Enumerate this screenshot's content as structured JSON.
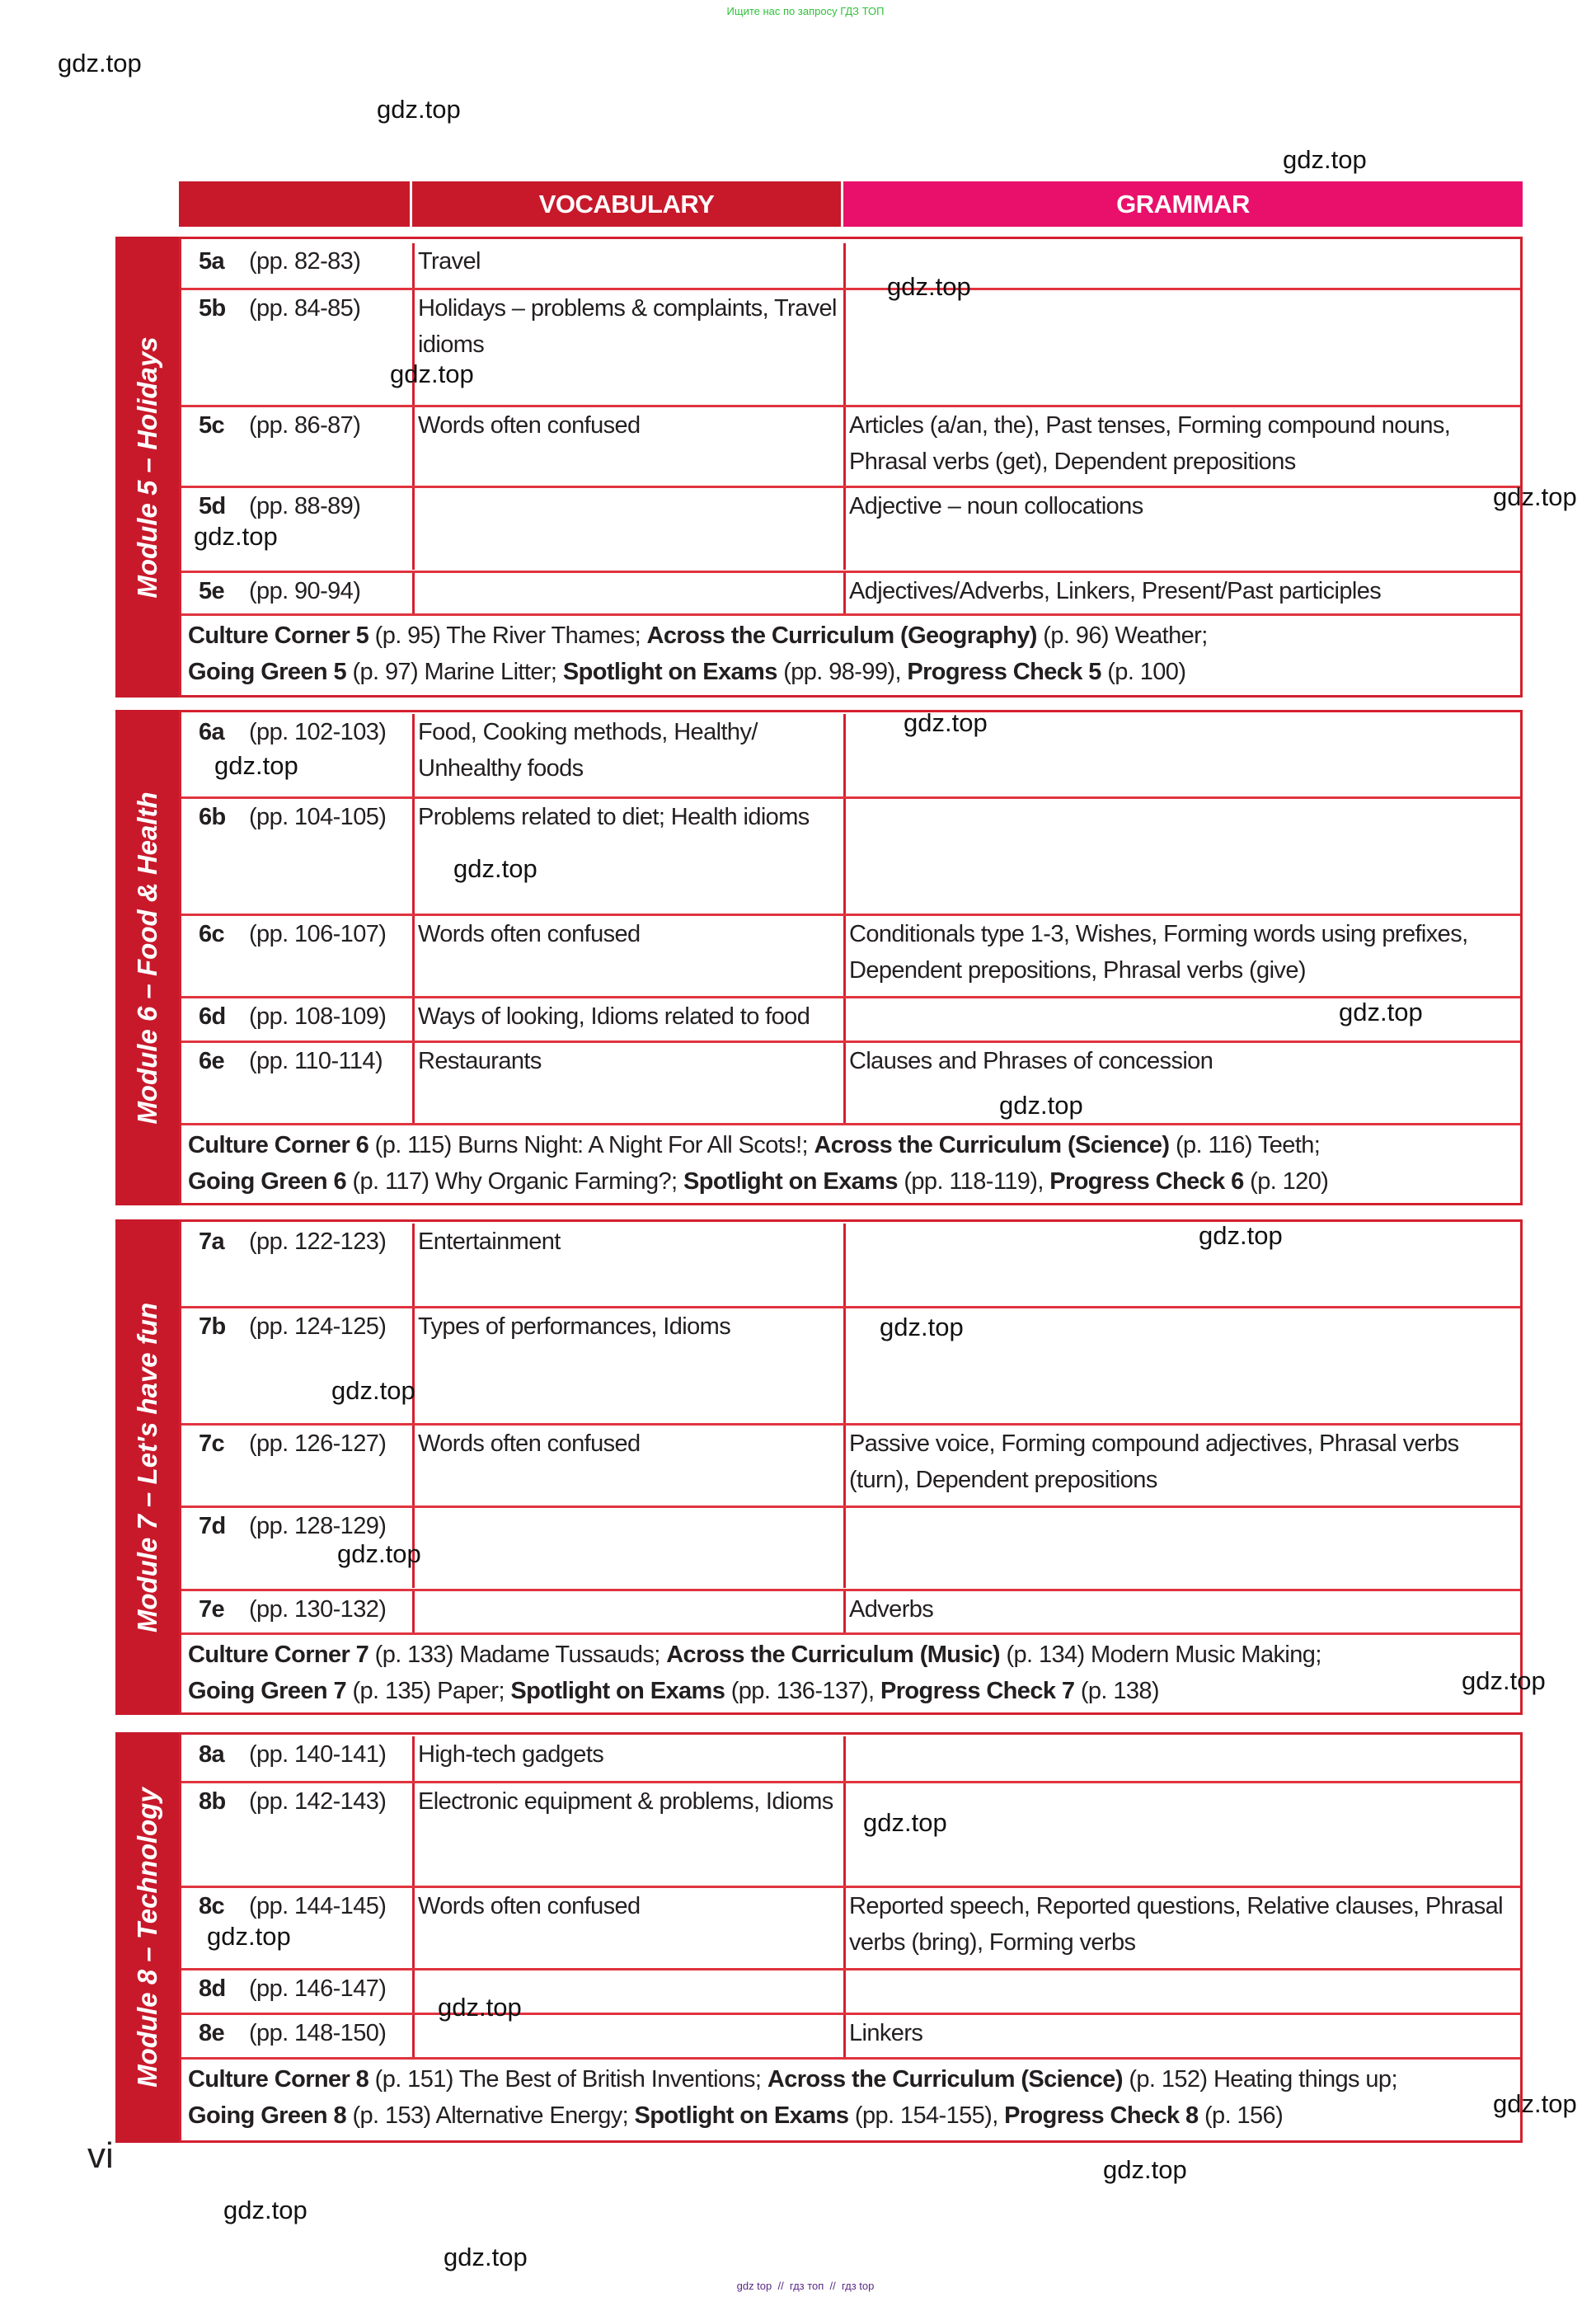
{
  "top_banner": "Ищите нас по запросу ГДЗ ТОП",
  "bottom_banner": "gdz top  //  гдз топ  //  гдз top",
  "page_number": "vi",
  "watermark": "gdz.top",
  "header": {
    "vocabulary": "VOCABULARY",
    "grammar": "GRAMMAR"
  },
  "colors": {
    "red": "#c8192b",
    "magenta": "#e8106a",
    "border": "#d4202f"
  },
  "modules": [
    {
      "label": "Module 5 – Holidays",
      "rows": [
        {
          "code": "5a",
          "pages": "(pp. 82-83)",
          "vocabulary": "Travel",
          "grammar": ""
        },
        {
          "code": "5b",
          "pages": "(pp. 84-85)",
          "vocabulary": "Holidays – problems & complaints, Travel idioms",
          "grammar": ""
        },
        {
          "code": "5c",
          "pages": "(pp. 86-87)",
          "vocabulary": "Words often confused",
          "grammar": "Articles (a/an, the), Past tenses, Forming compound nouns, Phrasal verbs (get), Dependent prepositions"
        },
        {
          "code": "5d",
          "pages": "(pp. 88-89)",
          "vocabulary": "",
          "grammar": "Adjective – noun collocations"
        },
        {
          "code": "5e",
          "pages": "(pp. 90-94)",
          "vocabulary": "",
          "grammar": "Adjectives/Adverbs, Linkers, Present/Past participles"
        }
      ],
      "culture": [
        {
          "bold": true,
          "text": "Culture Corner 5"
        },
        {
          "bold": false,
          "text": " (p. 95) The River Thames; "
        },
        {
          "bold": true,
          "text": "Across the Curriculum (Geography)"
        },
        {
          "bold": false,
          "text": " (p. 96) Weather;"
        },
        {
          "bold": true,
          "text": "Going Green 5",
          "br": true
        },
        {
          "bold": false,
          "text": " (p. 97) Marine Litter; "
        },
        {
          "bold": true,
          "text": "Spotlight on Exams"
        },
        {
          "bold": false,
          "text": " (pp. 98-99), "
        },
        {
          "bold": true,
          "text": "Progress Check 5"
        },
        {
          "bold": false,
          "text": " (p. 100)"
        }
      ]
    },
    {
      "label": "Module 6 – Food & Health",
      "rows": [
        {
          "code": "6a",
          "pages": "(pp. 102-103)",
          "vocabulary": "Food, Cooking methods, Healthy/ Unhealthy foods",
          "grammar": ""
        },
        {
          "code": "6b",
          "pages": "(pp. 104-105)",
          "vocabulary": "Problems related to diet; Health idioms",
          "grammar": ""
        },
        {
          "code": "6c",
          "pages": "(pp. 106-107)",
          "vocabulary": "Words often confused",
          "grammar": "Conditionals type 1-3, Wishes, Forming words using prefixes, Dependent prepositions, Phrasal verbs (give)"
        },
        {
          "code": "6d",
          "pages": "(pp. 108-109)",
          "vocabulary": "Ways of looking, Idioms related to food",
          "grammar": ""
        },
        {
          "code": "6e",
          "pages": "(pp. 110-114)",
          "vocabulary": "Restaurants",
          "grammar": "Clauses and Phrases of concession"
        }
      ],
      "culture": [
        {
          "bold": true,
          "text": "Culture Corner 6"
        },
        {
          "bold": false,
          "text": " (p. 115) Burns Night: A Night For All Scots!; "
        },
        {
          "bold": true,
          "text": "Across the Curriculum (Science)"
        },
        {
          "bold": false,
          "text": " (p. 116) Teeth;"
        },
        {
          "bold": true,
          "text": "Going Green 6",
          "br": true
        },
        {
          "bold": false,
          "text": " (p. 117) Why Organic Farming?; "
        },
        {
          "bold": true,
          "text": "Spotlight on Exams"
        },
        {
          "bold": false,
          "text": " (pp. 118-119), "
        },
        {
          "bold": true,
          "text": "Progress Check 6"
        },
        {
          "bold": false,
          "text": " (p. 120)"
        }
      ]
    },
    {
      "label": "Module 7 – Let's have fun",
      "rows": [
        {
          "code": "7a",
          "pages": "(pp. 122-123)",
          "vocabulary": "Entertainment",
          "grammar": ""
        },
        {
          "code": "7b",
          "pages": "(pp. 124-125)",
          "vocabulary": "Types of performances, Idioms",
          "grammar": ""
        },
        {
          "code": "7c",
          "pages": "(pp. 126-127)",
          "vocabulary": "Words often confused",
          "grammar": "Passive voice, Forming compound adjectives, Phrasal verbs (turn), Dependent prepositions"
        },
        {
          "code": "7d",
          "pages": "(pp. 128-129)",
          "vocabulary": "",
          "grammar": ""
        },
        {
          "code": "7e",
          "pages": "(pp. 130-132)",
          "vocabulary": "",
          "grammar": "Adverbs"
        }
      ],
      "culture": [
        {
          "bold": true,
          "text": "Culture Corner 7"
        },
        {
          "bold": false,
          "text": " (p. 133) Madame Tussauds; "
        },
        {
          "bold": true,
          "text": "Across the Curriculum (Music)"
        },
        {
          "bold": false,
          "text": " (p. 134) Modern Music Making;"
        },
        {
          "bold": true,
          "text": "Going Green 7",
          "br": true
        },
        {
          "bold": false,
          "text": " (p. 135) Paper; "
        },
        {
          "bold": true,
          "text": "Spotlight on Exams"
        },
        {
          "bold": false,
          "text": " (pp. 136-137), "
        },
        {
          "bold": true,
          "text": "Progress Check 7"
        },
        {
          "bold": false,
          "text": " (p. 138)"
        }
      ]
    },
    {
      "label": "Module 8 – Technology",
      "rows": [
        {
          "code": "8a",
          "pages": "(pp. 140-141)",
          "vocabulary": "High-tech gadgets",
          "grammar": ""
        },
        {
          "code": "8b",
          "pages": "(pp. 142-143)",
          "vocabulary": "Electronic equipment & problems, Idioms",
          "grammar": ""
        },
        {
          "code": "8c",
          "pages": "(pp. 144-145)",
          "vocabulary": "Words often confused",
          "grammar": "Reported speech, Reported questions, Relative clauses, Phrasal verbs (bring), Forming verbs"
        },
        {
          "code": "8d",
          "pages": "(pp. 146-147)",
          "vocabulary": "",
          "grammar": ""
        },
        {
          "code": "8e",
          "pages": "(pp. 148-150)",
          "vocabulary": "",
          "grammar": "Linkers"
        }
      ],
      "culture": [
        {
          "bold": true,
          "text": "Culture Corner 8"
        },
        {
          "bold": false,
          "text": " (p. 151) The Best of British Inventions; "
        },
        {
          "bold": true,
          "text": "Across the Curriculum (Science)"
        },
        {
          "bold": false,
          "text": " (p. 152) Heating things up;"
        },
        {
          "bold": true,
          "text": "Going Green 8",
          "br": true
        },
        {
          "bold": false,
          "text": " (p. 153) Alternative Energy; "
        },
        {
          "bold": true,
          "text": "Spotlight on Exams"
        },
        {
          "bold": false,
          "text": " (pp. 154-155), "
        },
        {
          "bold": true,
          "text": "Progress Check 8"
        },
        {
          "bold": false,
          "text": " (p. 156)"
        }
      ]
    }
  ]
}
